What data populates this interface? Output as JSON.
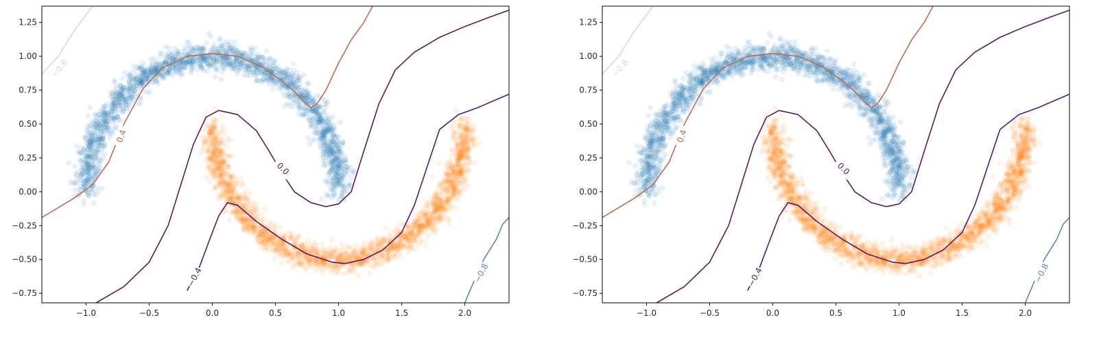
{
  "chart_data": [
    {
      "type": "scatter",
      "title": "",
      "xlabel": "",
      "ylabel": "",
      "xlim": [
        -1.35,
        2.35
      ],
      "ylim": [
        -0.82,
        1.37
      ],
      "xticks": [
        -1.0,
        -0.5,
        0.0,
        0.5,
        1.0,
        1.5,
        2.0
      ],
      "xtick_labels": [
        "−1.0",
        "−0.5",
        "0.0",
        "0.5",
        "1.0",
        "1.5",
        "2.0"
      ],
      "yticks": [
        -0.75,
        -0.5,
        -0.25,
        0.0,
        0.25,
        0.5,
        0.75,
        1.0,
        1.25
      ],
      "ytick_labels": [
        "−0.75",
        "−0.50",
        "−0.25",
        "0.00",
        "0.25",
        "0.50",
        "0.75",
        "1.00",
        "1.25"
      ],
      "grid": false,
      "series": [
        {
          "color": "#1f77b4",
          "opacity": 0.1,
          "shape": "upper moon",
          "center": [
            0.0,
            0.0
          ],
          "radius": 1.0,
          "angle_range_deg": [
            0,
            180
          ],
          "noise": 0.05,
          "n_points": 2000
        },
        {
          "color": "#ff7f0e",
          "opacity": 0.1,
          "shape": "lower moon",
          "center": [
            1.0,
            0.5
          ],
          "radius": 1.0,
          "angle_range_deg": [
            180,
            360
          ],
          "noise": 0.05,
          "n_points": 2000
        }
      ],
      "contours": [
        {
          "level": "−0.8",
          "color": "#d9d9d9",
          "points": [
            [
              -1.35,
              0.87
            ],
            [
              -1.22,
              1.0
            ],
            [
              -1.1,
              1.18
            ],
            [
              -0.95,
              1.37
            ]
          ],
          "label_at": [
            -1.21,
            0.91
          ],
          "label_angle": -50
        },
        {
          "level": "0.4",
          "color": "#c06a4f",
          "points": [
            [
              -1.35,
              -0.19
            ],
            [
              -1.1,
              -0.05
            ],
            [
              -0.95,
              0.05
            ],
            [
              -0.82,
              0.22
            ],
            [
              -0.7,
              0.5
            ],
            [
              -0.55,
              0.76
            ],
            [
              -0.4,
              0.91
            ],
            [
              -0.2,
              1.0
            ],
            [
              0.0,
              1.02
            ],
            [
              0.2,
              1.0
            ],
            [
              0.4,
              0.92
            ],
            [
              0.55,
              0.82
            ],
            [
              0.65,
              0.74
            ],
            [
              0.72,
              0.67
            ],
            [
              0.78,
              0.62
            ],
            [
              0.83,
              0.65
            ],
            [
              0.9,
              0.75
            ],
            [
              1.0,
              0.95
            ],
            [
              1.1,
              1.12
            ],
            [
              1.2,
              1.25
            ],
            [
              1.27,
              1.37
            ]
          ],
          "label_at": [
            -0.72,
            0.41
          ],
          "label_angle": -70
        },
        {
          "level": "0.0",
          "color": "#5a1a55",
          "points": [
            [
              -0.92,
              -0.82
            ],
            [
              -0.7,
              -0.7
            ],
            [
              -0.5,
              -0.52
            ],
            [
              -0.35,
              -0.25
            ],
            [
              -0.25,
              0.05
            ],
            [
              -0.15,
              0.35
            ],
            [
              -0.05,
              0.55
            ],
            [
              0.05,
              0.6
            ],
            [
              0.2,
              0.57
            ],
            [
              0.35,
              0.45
            ],
            [
              0.45,
              0.3
            ],
            [
              0.55,
              0.14
            ],
            [
              0.65,
              0.0
            ],
            [
              0.78,
              -0.08
            ],
            [
              0.9,
              -0.11
            ],
            [
              1.0,
              -0.09
            ],
            [
              1.1,
              0.0
            ],
            [
              1.2,
              0.3
            ],
            [
              1.32,
              0.65
            ],
            [
              1.45,
              0.9
            ],
            [
              1.6,
              1.03
            ],
            [
              1.8,
              1.14
            ],
            [
              2.0,
              1.22
            ],
            [
              2.2,
              1.29
            ],
            [
              2.35,
              1.34
            ]
          ],
          "label_at": [
            0.56,
            0.17
          ],
          "label_angle": 45
        },
        {
          "level": "−0.4",
          "color": "#4d1a78",
          "points": [
            [
              -0.2,
              -0.73
            ],
            [
              -0.1,
              -0.55
            ],
            [
              -0.02,
              -0.35
            ],
            [
              0.05,
              -0.18
            ],
            [
              0.12,
              -0.08
            ],
            [
              0.2,
              -0.1
            ],
            [
              0.35,
              -0.22
            ],
            [
              0.55,
              -0.35
            ],
            [
              0.75,
              -0.46
            ],
            [
              0.95,
              -0.52
            ],
            [
              1.05,
              -0.53
            ],
            [
              1.2,
              -0.5
            ],
            [
              1.35,
              -0.43
            ],
            [
              1.5,
              -0.3
            ],
            [
              1.6,
              -0.1
            ],
            [
              1.7,
              0.18
            ],
            [
              1.8,
              0.46
            ],
            [
              1.95,
              0.57
            ],
            [
              2.1,
              0.62
            ],
            [
              2.25,
              0.68
            ],
            [
              2.35,
              0.72
            ]
          ],
          "label_at": [
            -0.14,
            -0.63
          ],
          "label_angle": -62
        },
        {
          "level": "−0.8",
          "color": "#5a87b8",
          "points": [
            [
              2.0,
              -0.82
            ],
            [
              2.1,
              -0.6
            ],
            [
              2.15,
              -0.5
            ],
            [
              2.25,
              -0.35
            ],
            [
              2.3,
              -0.24
            ],
            [
              2.35,
              -0.19
            ]
          ],
          "label_at": [
            2.13,
            -0.6
          ],
          "label_angle": -62
        }
      ]
    },
    {
      "type": "scatter",
      "title": "",
      "xlabel": "",
      "ylabel": "",
      "xlim": [
        -1.35,
        2.35
      ],
      "ylim": [
        -0.82,
        1.37
      ],
      "xticks": [
        -1.0,
        -0.5,
        0.0,
        0.5,
        1.0,
        1.5,
        2.0
      ],
      "xtick_labels": [
        "−1.0",
        "−0.5",
        "0.0",
        "0.5",
        "1.0",
        "1.5",
        "2.0"
      ],
      "yticks": [
        -0.75,
        -0.5,
        -0.25,
        0.0,
        0.25,
        0.5,
        0.75,
        1.0,
        1.25
      ],
      "ytick_labels": [
        "−0.75",
        "−0.50",
        "−0.25",
        "0.00",
        "0.25",
        "0.50",
        "0.75",
        "1.00",
        "1.25"
      ],
      "grid": false,
      "series": [
        {
          "color": "#1f77b4",
          "opacity": 0.1,
          "shape": "upper moon",
          "center": [
            0.0,
            0.0
          ],
          "radius": 1.0,
          "angle_range_deg": [
            0,
            180
          ],
          "noise": 0.05,
          "n_points": 2000
        },
        {
          "color": "#ff7f0e",
          "opacity": 0.1,
          "shape": "lower moon",
          "center": [
            1.0,
            0.5
          ],
          "radius": 1.0,
          "angle_range_deg": [
            180,
            360
          ],
          "noise": 0.05,
          "n_points": 2000
        }
      ],
      "contours": [
        {
          "level": "−0.8",
          "color": "#d9d9d9",
          "points": [
            [
              -1.35,
              0.87
            ],
            [
              -1.22,
              1.0
            ],
            [
              -1.1,
              1.18
            ],
            [
              -0.95,
              1.37
            ]
          ],
          "label_at": [
            -1.21,
            0.91
          ],
          "label_angle": -50
        },
        {
          "level": "0.4",
          "color": "#c06a4f",
          "points": [
            [
              -1.35,
              -0.19
            ],
            [
              -1.1,
              -0.05
            ],
            [
              -0.95,
              0.05
            ],
            [
              -0.82,
              0.22
            ],
            [
              -0.7,
              0.5
            ],
            [
              -0.55,
              0.76
            ],
            [
              -0.4,
              0.91
            ],
            [
              -0.2,
              1.0
            ],
            [
              0.0,
              1.02
            ],
            [
              0.2,
              1.0
            ],
            [
              0.4,
              0.92
            ],
            [
              0.55,
              0.82
            ],
            [
              0.65,
              0.74
            ],
            [
              0.72,
              0.67
            ],
            [
              0.78,
              0.62
            ],
            [
              0.83,
              0.65
            ],
            [
              0.9,
              0.75
            ],
            [
              1.0,
              0.95
            ],
            [
              1.1,
              1.12
            ],
            [
              1.2,
              1.25
            ],
            [
              1.27,
              1.37
            ]
          ],
          "label_at": [
            -0.72,
            0.41
          ],
          "label_angle": -70
        },
        {
          "level": "0.0",
          "color": "#5a1a55",
          "points": [
            [
              -0.92,
              -0.82
            ],
            [
              -0.7,
              -0.7
            ],
            [
              -0.5,
              -0.52
            ],
            [
              -0.35,
              -0.25
            ],
            [
              -0.25,
              0.05
            ],
            [
              -0.15,
              0.35
            ],
            [
              -0.05,
              0.55
            ],
            [
              0.05,
              0.6
            ],
            [
              0.2,
              0.57
            ],
            [
              0.35,
              0.45
            ],
            [
              0.45,
              0.3
            ],
            [
              0.55,
              0.14
            ],
            [
              0.65,
              0.0
            ],
            [
              0.78,
              -0.08
            ],
            [
              0.9,
              -0.11
            ],
            [
              1.0,
              -0.09
            ],
            [
              1.1,
              0.0
            ],
            [
              1.2,
              0.3
            ],
            [
              1.32,
              0.65
            ],
            [
              1.45,
              0.9
            ],
            [
              1.6,
              1.03
            ],
            [
              1.8,
              1.14
            ],
            [
              2.0,
              1.22
            ],
            [
              2.2,
              1.29
            ],
            [
              2.35,
              1.34
            ]
          ],
          "label_at": [
            0.56,
            0.17
          ],
          "label_angle": 45
        },
        {
          "level": "−0.4",
          "color": "#4d1a78",
          "points": [
            [
              -0.2,
              -0.73
            ],
            [
              -0.1,
              -0.55
            ],
            [
              -0.02,
              -0.35
            ],
            [
              0.05,
              -0.18
            ],
            [
              0.12,
              -0.08
            ],
            [
              0.2,
              -0.1
            ],
            [
              0.35,
              -0.22
            ],
            [
              0.55,
              -0.35
            ],
            [
              0.75,
              -0.46
            ],
            [
              0.95,
              -0.52
            ],
            [
              1.05,
              -0.53
            ],
            [
              1.2,
              -0.5
            ],
            [
              1.35,
              -0.43
            ],
            [
              1.5,
              -0.3
            ],
            [
              1.6,
              -0.1
            ],
            [
              1.7,
              0.18
            ],
            [
              1.8,
              0.46
            ],
            [
              1.95,
              0.57
            ],
            [
              2.1,
              0.62
            ],
            [
              2.25,
              0.68
            ],
            [
              2.35,
              0.72
            ]
          ],
          "label_at": [
            -0.14,
            -0.63
          ],
          "label_angle": -62
        },
        {
          "level": "−0.8",
          "color": "#5a87b8",
          "points": [
            [
              2.0,
              -0.82
            ],
            [
              2.1,
              -0.6
            ],
            [
              2.15,
              -0.5
            ],
            [
              2.25,
              -0.35
            ],
            [
              2.3,
              -0.24
            ],
            [
              2.35,
              -0.19
            ]
          ],
          "label_at": [
            2.13,
            -0.6
          ],
          "label_angle": -62
        }
      ]
    }
  ]
}
